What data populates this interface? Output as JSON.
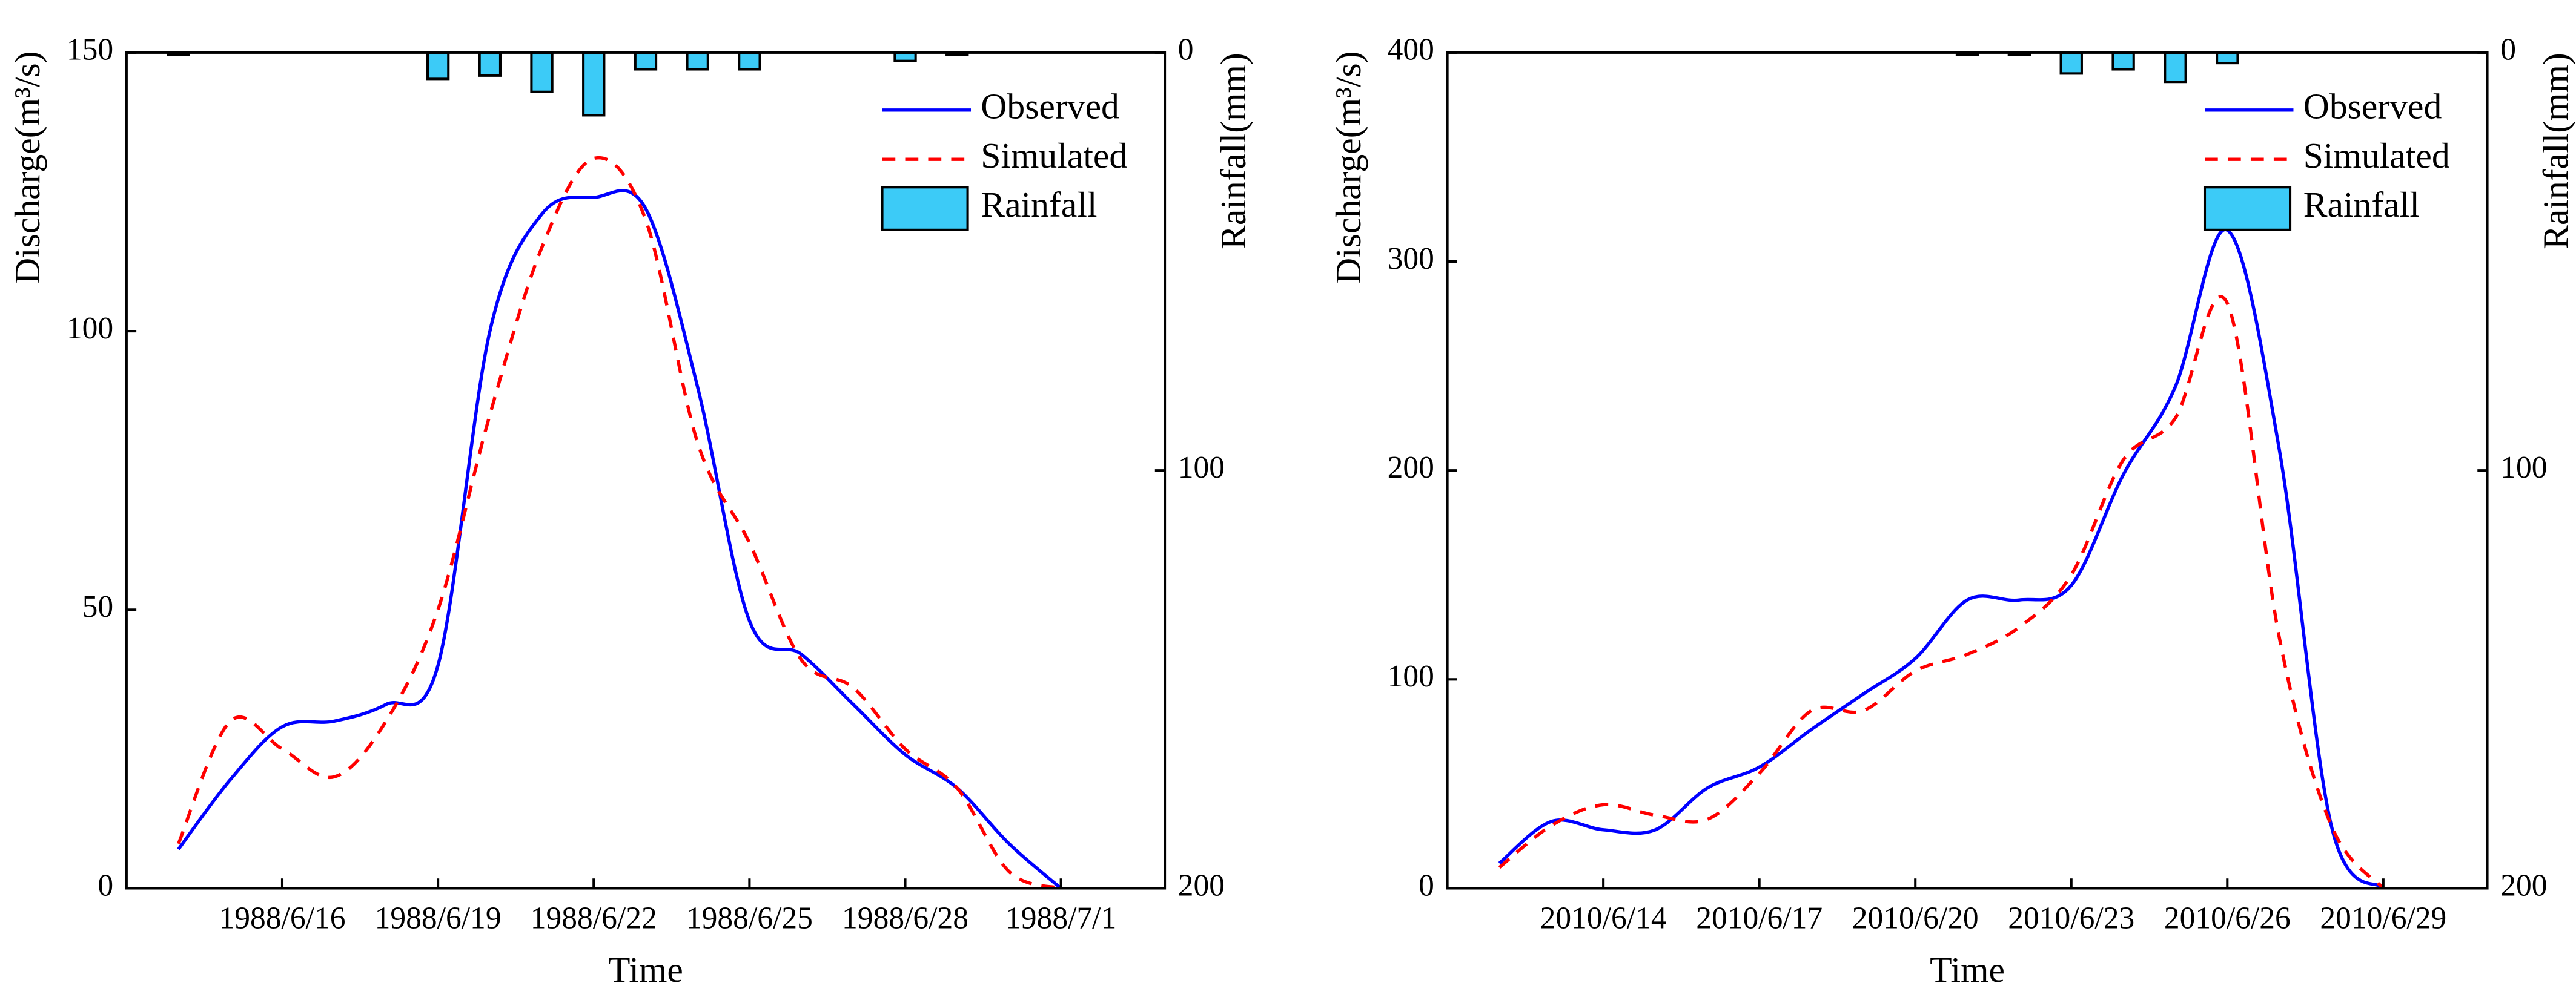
{
  "chart_data": [
    {
      "type": "line",
      "x_label": "Time",
      "y_label": "Discharge(m³/s)",
      "y2_label": "Rainfall(mm)",
      "x": [
        "1988/6/14",
        "1988/6/15",
        "1988/6/16",
        "1988/6/17",
        "1988/6/18",
        "1988/6/19",
        "1988/6/20",
        "1988/6/21",
        "1988/6/22",
        "1988/6/23",
        "1988/6/24",
        "1988/6/25",
        "1988/6/26",
        "1988/6/27",
        "1988/6/28",
        "1988/6/29",
        "1988/6/30",
        "1988/7/1"
      ],
      "xlim": [
        "1988/6/13",
        "1988/7/3"
      ],
      "xticks": [
        "1988/6/16",
        "1988/6/19",
        "1988/6/22",
        "1988/6/25",
        "1988/6/28",
        "1988/7/1"
      ],
      "ylim": [
        0,
        150
      ],
      "yticks": [
        0,
        50,
        100,
        150
      ],
      "y2lim": [
        200,
        0
      ],
      "y2ticks": [
        0,
        100,
        200
      ],
      "legend": "upper right",
      "series": [
        {
          "name": "Observed",
          "color": "#0000ff",
          "style": "solid",
          "values": [
            7,
            19.5,
            29,
            30,
            33,
            40,
            100,
            121,
            124,
            122,
            90,
            48,
            42,
            33,
            24,
            18,
            8,
            0
          ]
        },
        {
          "name": "Simulated",
          "color": "#ff0000",
          "style": "dashed",
          "values": [
            8,
            30,
            25,
            20,
            30,
            50,
            85,
            115,
            131,
            120,
            80,
            62,
            41,
            36,
            25,
            18,
            3,
            0
          ]
        },
        {
          "name": "Rainfall",
          "color": "#3ccbf7",
          "type": "bar",
          "axis": "y2",
          "values": [
            0.5,
            0,
            0,
            0,
            0,
            6.3,
            5.5,
            9.4,
            15,
            4,
            4,
            4,
            0,
            0,
            2,
            0.5,
            0,
            0
          ]
        }
      ]
    },
    {
      "type": "line",
      "x_label": "Time",
      "y_label": "Discharge(m³/s)",
      "y2_label": "Rainfall(mm)",
      "x": [
        "2010/6/12",
        "2010/6/13",
        "2010/6/14",
        "2010/6/15",
        "2010/6/16",
        "2010/6/17",
        "2010/6/18",
        "2010/6/19",
        "2010/6/20",
        "2010/6/21",
        "2010/6/22",
        "2010/6/23",
        "2010/6/24",
        "2010/6/25",
        "2010/6/26",
        "2010/6/27",
        "2010/6/28",
        "2010/6/29"
      ],
      "xlim": [
        "2010/6/11",
        "2010/7/1"
      ],
      "xticks": [
        "2010/6/14",
        "2010/6/17",
        "2010/6/20",
        "2010/6/23",
        "2010/6/26",
        "2010/6/29"
      ],
      "ylim": [
        0,
        400
      ],
      "yticks": [
        0,
        100,
        200,
        300,
        400
      ],
      "y2lim": [
        200,
        0
      ],
      "y2ticks": [
        0,
        100,
        200
      ],
      "legend": "upper right",
      "series": [
        {
          "name": "Observed",
          "color": "#0000ff",
          "style": "solid",
          "values": [
            12,
            32,
            28,
            28,
            48,
            58,
            76,
            93,
            110,
            138,
            138,
            145,
            198,
            240,
            315,
            210,
            30,
            0
          ]
        },
        {
          "name": "Simulated",
          "color": "#ff0000",
          "style": "dashed",
          "values": [
            10,
            30,
            40,
            35,
            33,
            55,
            85,
            85,
            104,
            112,
            125,
            150,
            205,
            225,
            280,
            120,
            30,
            0
          ]
        },
        {
          "name": "Rainfall",
          "color": "#3ccbf7",
          "type": "bar",
          "axis": "y2",
          "values": [
            0,
            0,
            0,
            0,
            0,
            0,
            0,
            0,
            0,
            0.5,
            0.5,
            5,
            4,
            7,
            2.5,
            0,
            0,
            0
          ]
        }
      ]
    }
  ]
}
